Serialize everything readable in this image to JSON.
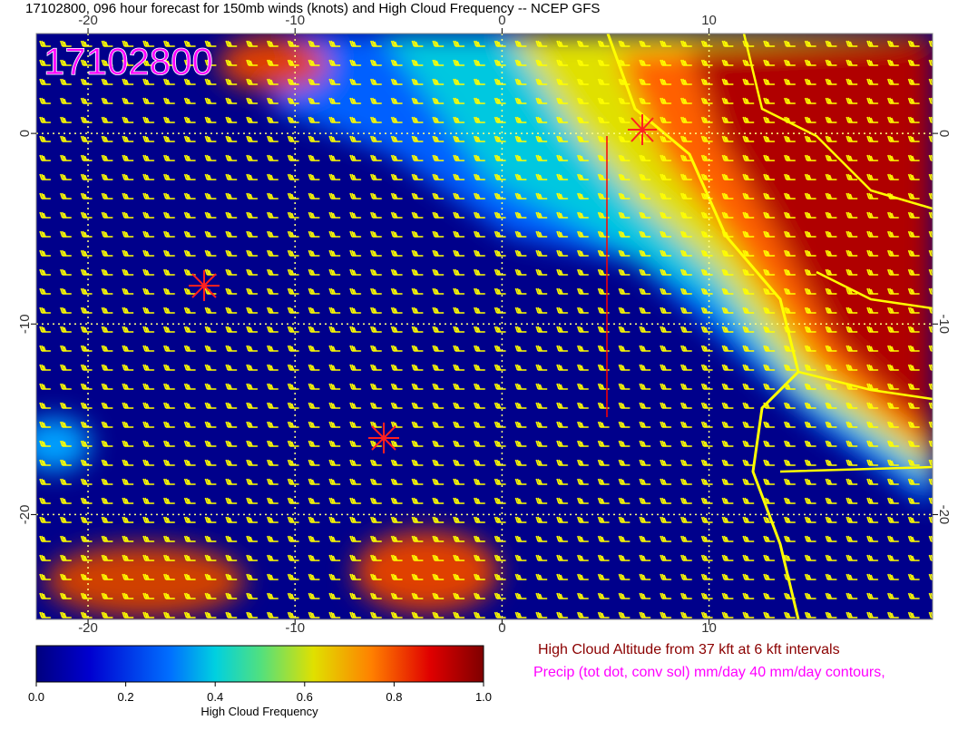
{
  "map": {
    "title": "17102800, 096 hour forecast for 150mb winds (knots) and High Cloud Frequency -- NCEP GFS",
    "stamp": "17102800",
    "lon_range": [
      -22.5,
      20.8
    ],
    "lat_range": [
      5.24,
      -25.5
    ],
    "lon_ticks": [
      -20,
      -10,
      0,
      10
    ],
    "lat_ticks": [
      0,
      -10,
      -20
    ],
    "colorbar": {
      "label": "High Cloud Frequency",
      "range": [
        0,
        1
      ],
      "ticks": [
        {
          "value": 0,
          "label": "0.0"
        },
        {
          "value": 0.2,
          "label": "0.2"
        },
        {
          "value": 0.4,
          "label": "0.4"
        },
        {
          "value": 0.6,
          "label": "0.6"
        },
        {
          "value": 0.8,
          "label": "0.8"
        },
        {
          "value": 1,
          "label": "1.0"
        }
      ]
    },
    "notes": [
      "High Cloud Altitude from 37 kft at 6 kft intervals",
      "Precip (tot dot, conv sol) mm/day 40 mm/day contours,"
    ]
  }
}
